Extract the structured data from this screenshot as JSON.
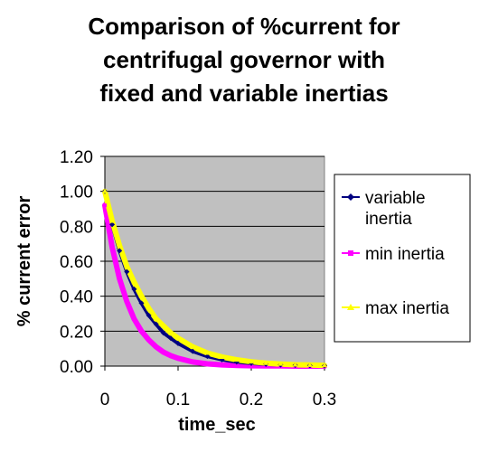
{
  "chart_data": {
    "type": "line",
    "title_lines": [
      "Comparison of %current for",
      "centrifugal governor with",
      "fixed and variable inertias"
    ],
    "xlabel": "time_sec",
    "ylabel": "% current error",
    "xlim": [
      0,
      0.3
    ],
    "ylim": [
      0,
      1.2
    ],
    "x_ticks": [
      "0",
      "0.1",
      "0.2",
      "0.3"
    ],
    "x_tick_values": [
      0,
      0.1,
      0.2,
      0.3
    ],
    "y_ticks": [
      "0.00",
      "0.20",
      "0.40",
      "0.60",
      "0.80",
      "1.00",
      "1.20"
    ],
    "y_tick_values": [
      0,
      0.2,
      0.4,
      0.6,
      0.8,
      1.0,
      1.2
    ],
    "grid": "horizontal",
    "plot_background": "#c0c0c0",
    "legend_position": "right",
    "x": [
      0,
      0.01,
      0.02,
      0.03,
      0.04,
      0.05,
      0.06,
      0.07,
      0.08,
      0.09,
      0.1,
      0.12,
      0.14,
      0.16,
      0.18,
      0.2,
      0.22,
      0.24,
      0.26,
      0.28,
      0.3
    ],
    "series": [
      {
        "name": "variable inertia",
        "color": "#000080",
        "marker": "diamond",
        "values": [
          1.0,
          0.81,
          0.66,
          0.54,
          0.44,
          0.36,
          0.29,
          0.24,
          0.19,
          0.16,
          0.13,
          0.085,
          0.056,
          0.037,
          0.024,
          0.016,
          0.011,
          0.007,
          0.005,
          0.003,
          0.002
        ]
      },
      {
        "name": "min inertia",
        "color": "#ff00ff",
        "marker": "square",
        "values": [
          0.92,
          0.68,
          0.5,
          0.37,
          0.27,
          0.2,
          0.15,
          0.11,
          0.08,
          0.06,
          0.045,
          0.024,
          0.013,
          0.007,
          0.004,
          0.002,
          0.001,
          0.001,
          0.0,
          0.0,
          0.0
        ]
      },
      {
        "name": "max inertia",
        "color": "#ffff00",
        "marker": "triangle",
        "values": [
          1.0,
          0.83,
          0.69,
          0.57,
          0.48,
          0.4,
          0.33,
          0.27,
          0.23,
          0.19,
          0.16,
          0.11,
          0.075,
          0.052,
          0.036,
          0.025,
          0.017,
          0.012,
          0.008,
          0.006,
          0.004
        ]
      }
    ]
  }
}
